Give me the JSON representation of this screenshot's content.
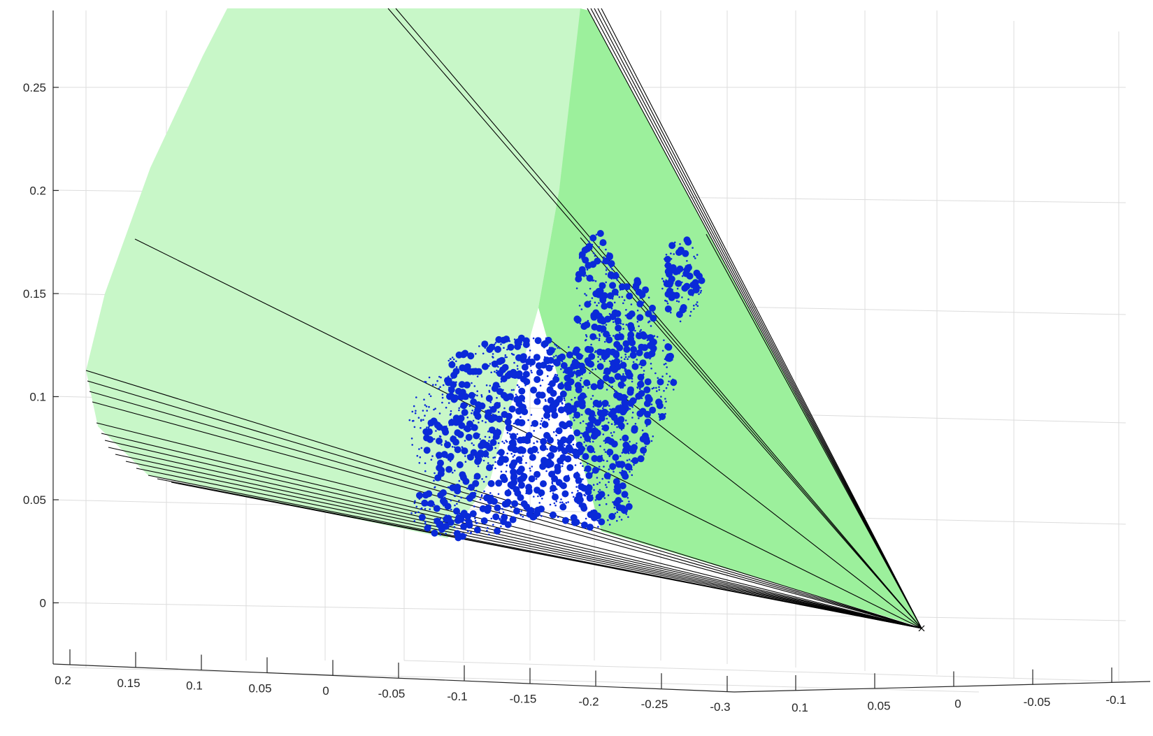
{
  "chart_data": {
    "type": "scatter",
    "title": "",
    "xlabel": "",
    "ylabel": "",
    "zlabel": "",
    "grid": true,
    "z_ticks": [
      "0",
      "0.05",
      "0.1",
      "0.15",
      "0.2",
      "0.25"
    ],
    "x_ticks": [
      "0.2",
      "0.15",
      "0.1",
      "0.05",
      "0",
      "-0.05",
      "-0.1",
      "-0.15",
      "-0.2",
      "-0.25",
      "-0.3"
    ],
    "y_ticks": [
      "0.1",
      "0.05",
      "0",
      "-0.05",
      "-0.1"
    ],
    "colors": {
      "cone_light": "#c8f7c8",
      "cone_dark": "#9cf09c",
      "points": "#0a2ad8",
      "rays": "#000000",
      "grid": "#dcdcdc"
    },
    "series": [
      {
        "kind": "point cloud (bunny)",
        "marker": "dot"
      },
      {
        "kind": "viewing cone surface"
      },
      {
        "kind": "rays to camera center",
        "marker": "x"
      }
    ]
  }
}
